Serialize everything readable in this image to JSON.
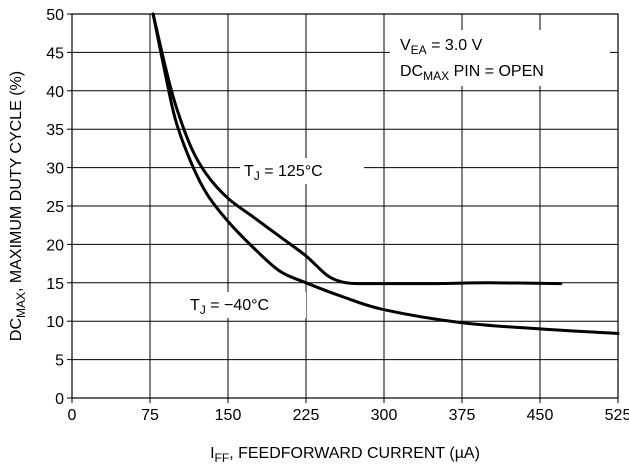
{
  "chart_data": {
    "type": "line",
    "title": "",
    "xlabel": {
      "main": "I",
      "sub": "FF",
      "rest": ", FEEDFORWARD CURRENT (µA)"
    },
    "ylabel": {
      "main": "DC",
      "sub": "MAX",
      "rest": ", MAXIMUM DUTY CYCLE (%)"
    },
    "xlim": [
      0,
      525
    ],
    "ylim": [
      0,
      50
    ],
    "x_ticks": [
      "0",
      "75",
      "150",
      "225",
      "300",
      "375",
      "450",
      "525"
    ],
    "y_ticks": [
      "0",
      "5",
      "10",
      "15",
      "20",
      "25",
      "30",
      "35",
      "40",
      "45",
      "50"
    ],
    "grid": true,
    "series": [
      {
        "name": "T_J = 125°C",
        "x": [
          78,
          90,
          100,
          115,
          130,
          150,
          175,
          200,
          225,
          245,
          260,
          275,
          300,
          350,
          400,
          470
        ],
        "y": [
          50,
          43,
          38,
          32.5,
          29,
          26,
          23.5,
          21,
          18.5,
          16,
          15.1,
          14.9,
          14.9,
          14.9,
          15,
          14.9
        ]
      },
      {
        "name": "T_J = -40°C",
        "x": [
          78,
          90,
          100,
          115,
          130,
          150,
          175,
          200,
          225,
          260,
          300,
          375,
          450,
          525
        ],
        "y": [
          50,
          42,
          36,
          30.5,
          26.5,
          23,
          19.5,
          16.5,
          15,
          13.2,
          11.5,
          9.8,
          9.0,
          8.4
        ]
      }
    ],
    "annotations": {
      "curve_hot": {
        "pre": "T",
        "sub": "J",
        "post": " = 125°C"
      },
      "curve_cold": {
        "pre": "T",
        "sub": "J",
        "post": " = −40°C"
      },
      "cond1": {
        "pre": "V",
        "sub": "EA",
        "post": " = 3.0 V"
      },
      "cond2": {
        "pre": "DC",
        "sub": "MAX",
        "post": " PIN = OPEN"
      }
    },
    "colors": {
      "line": "#000000",
      "grid": "#000000",
      "background": "#ffffff"
    }
  }
}
